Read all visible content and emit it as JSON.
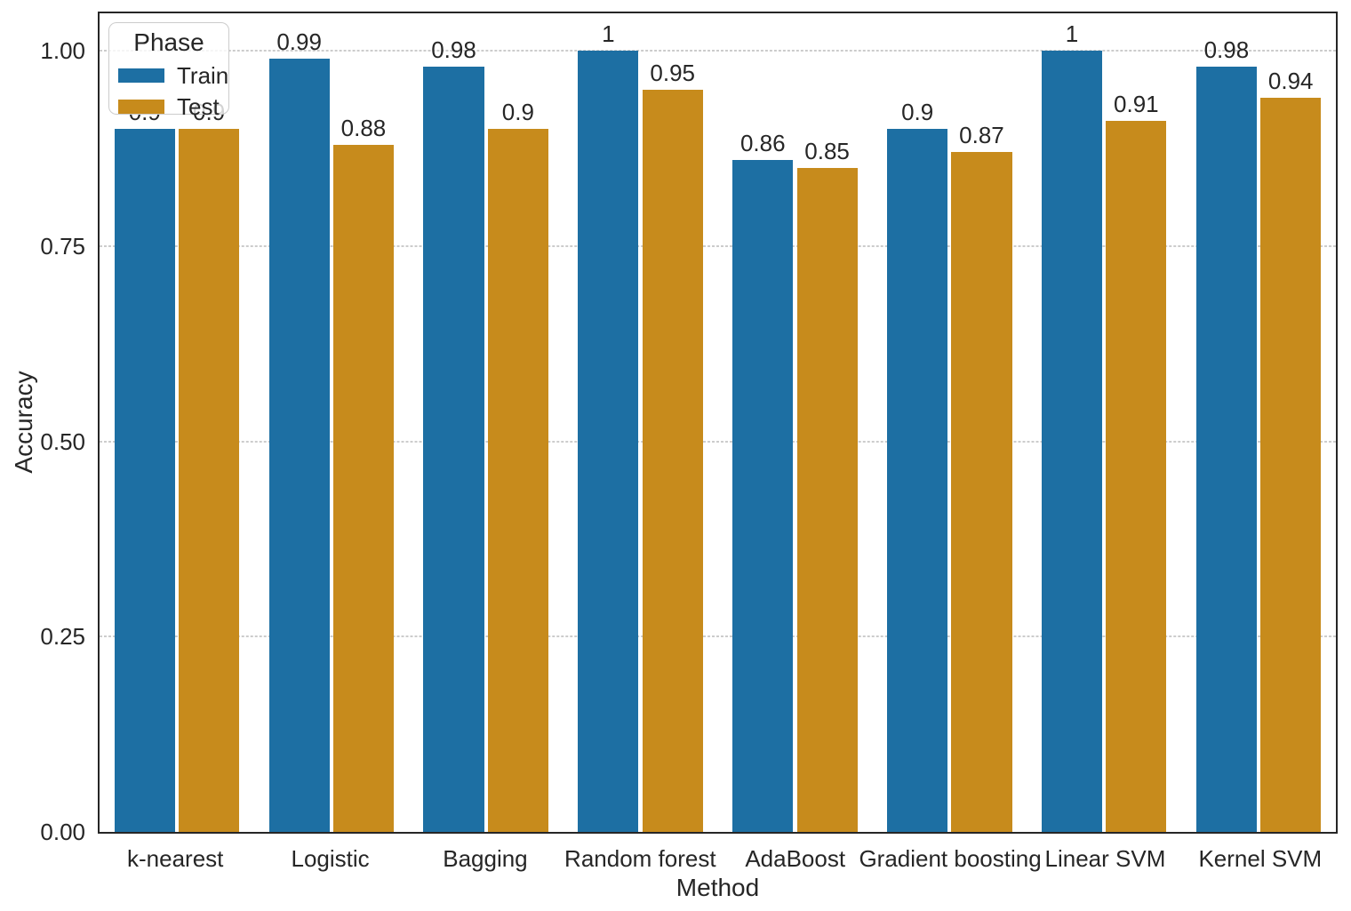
{
  "chart_data": {
    "type": "bar",
    "title": "",
    "xlabel": "Method",
    "ylabel": "Accuracy",
    "categories": [
      "k-nearest",
      "Logistic",
      "Bagging",
      "Random forest",
      "AdaBoost",
      "Gradient boosting",
      "Linear SVM",
      "Kernel SVM"
    ],
    "series": [
      {
        "name": "Train",
        "color": "#1d6fa3",
        "values": [
          0.9,
          0.99,
          0.98,
          1.0,
          0.86,
          0.9,
          1.0,
          0.98
        ],
        "labels": [
          "0.9",
          "0.99",
          "0.98",
          "1",
          "0.86",
          "0.9",
          "1",
          "0.98"
        ]
      },
      {
        "name": "Test",
        "color": "#c78b1c",
        "values": [
          0.9,
          0.88,
          0.9,
          0.95,
          0.85,
          0.87,
          0.91,
          0.94
        ],
        "labels": [
          "0.9",
          "0.88",
          "0.9",
          "0.95",
          "0.85",
          "0.87",
          "0.91",
          "0.94"
        ]
      }
    ],
    "ylim": [
      0,
      1.0478
    ],
    "yticks": [
      {
        "value": 0.0,
        "label": "0.00"
      },
      {
        "value": 0.25,
        "label": "0.25"
      },
      {
        "value": 0.5,
        "label": "0.50"
      },
      {
        "value": 0.75,
        "label": "0.75"
      },
      {
        "value": 1.0,
        "label": "1.00"
      }
    ],
    "grid": {
      "on": true,
      "style": "dashed",
      "color": "#9a9a9a",
      "at": [
        0.25,
        0.5,
        0.75,
        1.0
      ]
    },
    "legend": {
      "title": "Phase",
      "position": "upper-left",
      "entries": [
        {
          "label": "Train",
          "color": "#1d6fa3"
        },
        {
          "label": "Test",
          "color": "#c78b1c"
        }
      ]
    },
    "colors": {
      "spine": "#262626",
      "text": "#262626",
      "background": "#ffffff"
    }
  }
}
